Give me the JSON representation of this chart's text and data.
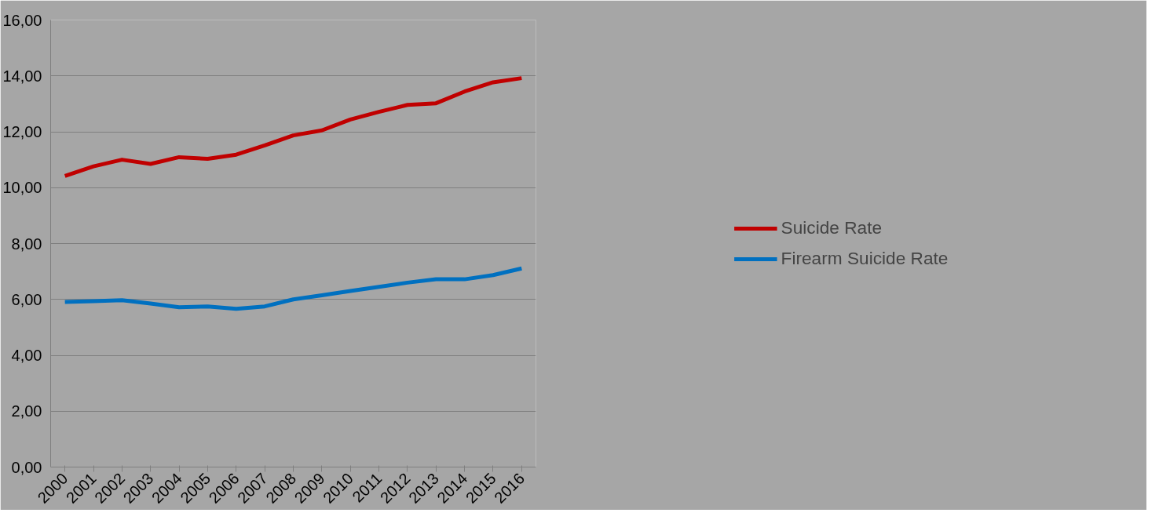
{
  "chart_data": {
    "type": "line",
    "categories": [
      "2000",
      "2001",
      "2002",
      "2003",
      "2004",
      "2005",
      "2006",
      "2007",
      "2008",
      "2009",
      "2010",
      "2011",
      "2012",
      "2013",
      "2014",
      "2015",
      "2016"
    ],
    "series": [
      {
        "name": "Suicide Rate",
        "color": "#c00000",
        "values": [
          10.42,
          10.76,
          11.0,
          10.85,
          11.09,
          11.03,
          11.18,
          11.51,
          11.87,
          12.05,
          12.44,
          12.71,
          12.96,
          13.02,
          13.44,
          13.77,
          13.92
        ]
      },
      {
        "name": "Firearm Suicide Rate",
        "color": "#0070c0",
        "values": [
          5.91,
          5.94,
          5.97,
          5.85,
          5.72,
          5.75,
          5.66,
          5.75,
          6.0,
          6.15,
          6.3,
          6.45,
          6.6,
          6.72,
          6.72,
          6.87,
          7.11
        ]
      }
    ],
    "ylim": [
      0,
      16
    ],
    "yticks": [
      {
        "value": 0,
        "label": "0,00"
      },
      {
        "value": 2,
        "label": "2,00"
      },
      {
        "value": 4,
        "label": "4,00"
      },
      {
        "value": 6,
        "label": "6,00"
      },
      {
        "value": 8,
        "label": "8,00"
      },
      {
        "value": 10,
        "label": "10,00"
      },
      {
        "value": 12,
        "label": "12,00"
      },
      {
        "value": 14,
        "label": "14,00"
      },
      {
        "value": 16,
        "label": "16,00"
      }
    ],
    "grid": "y",
    "legend": "right",
    "marker": "none",
    "line_style": "solid"
  }
}
